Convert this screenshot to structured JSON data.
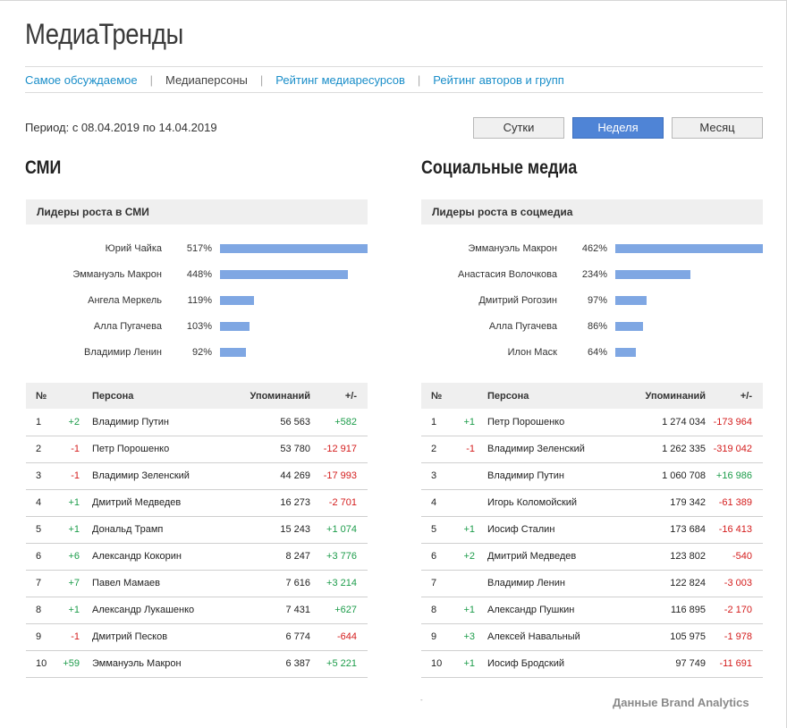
{
  "app": {
    "title": "МедиаТренды"
  },
  "nav": {
    "items": [
      {
        "label": "Самое обсуждаемое"
      },
      {
        "label": "Медиаперсоны"
      },
      {
        "label": "Рейтинг медиаресурсов"
      },
      {
        "label": "Рейтинг авторов и групп"
      }
    ],
    "separator": "|"
  },
  "period": {
    "text": "Период: с 08.04.2019 по 14.04.2019"
  },
  "range_buttons": {
    "day": "Сутки",
    "week": "Неделя",
    "month": "Месяц",
    "active": "week"
  },
  "smi": {
    "title": "СМИ",
    "growth_title": "Лидеры роста в СМИ",
    "growth": [
      {
        "name": "Юрий Чайка",
        "pct": "517%",
        "value": 517
      },
      {
        "name": "Эммануэль Макрон",
        "pct": "448%",
        "value": 448
      },
      {
        "name": "Ангела Меркель",
        "pct": "119%",
        "value": 119
      },
      {
        "name": "Алла Пугачева",
        "pct": "103%",
        "value": 103
      },
      {
        "name": "Владимир Ленин",
        "pct": "92%",
        "value": 92
      }
    ],
    "table": {
      "headers": {
        "num": "№",
        "person": "Персона",
        "mentions": "Упоминаний",
        "diff": "+/-"
      },
      "rows": [
        {
          "num": "1",
          "delta": "+2",
          "name": "Владимир Путин",
          "mentions": "56 563",
          "diff": "+582"
        },
        {
          "num": "2",
          "delta": "-1",
          "name": "Петр Порошенко",
          "mentions": "53 780",
          "diff": "-12 917"
        },
        {
          "num": "3",
          "delta": "-1",
          "name": "Владимир Зеленский",
          "mentions": "44 269",
          "diff": "-17 993"
        },
        {
          "num": "4",
          "delta": "+1",
          "name": "Дмитрий Медведев",
          "mentions": "16 273",
          "diff": "-2 701"
        },
        {
          "num": "5",
          "delta": "+1",
          "name": "Дональд Трамп",
          "mentions": "15 243",
          "diff": "+1 074"
        },
        {
          "num": "6",
          "delta": "+6",
          "name": "Александр Кокорин",
          "mentions": "8 247",
          "diff": "+3 776"
        },
        {
          "num": "7",
          "delta": "+7",
          "name": "Павел Мамаев",
          "mentions": "7 616",
          "diff": "+3 214"
        },
        {
          "num": "8",
          "delta": "+1",
          "name": "Александр Лукашенко",
          "mentions": "7 431",
          "diff": "+627"
        },
        {
          "num": "9",
          "delta": "-1",
          "name": "Дмитрий Песков",
          "mentions": "6 774",
          "diff": "-644"
        },
        {
          "num": "10",
          "delta": "+59",
          "name": "Эммануэль Макрон",
          "mentions": "6 387",
          "diff": "+5 221"
        }
      ]
    }
  },
  "social": {
    "title": "Социальные медиа",
    "growth_title": "Лидеры роста в соцмедиа",
    "growth": [
      {
        "name": "Эммануэль Макрон",
        "pct": "462%",
        "value": 462
      },
      {
        "name": "Анастасия Волочкова",
        "pct": "234%",
        "value": 234
      },
      {
        "name": "Дмитрий Рогозин",
        "pct": "97%",
        "value": 97
      },
      {
        "name": "Алла Пугачева",
        "pct": "86%",
        "value": 86
      },
      {
        "name": "Илон Маск",
        "pct": "64%",
        "value": 64
      }
    ],
    "table": {
      "headers": {
        "num": "№",
        "person": "Персона",
        "mentions": "Упоминаний",
        "diff": "+/-"
      },
      "rows": [
        {
          "num": "1",
          "delta": "+1",
          "name": "Петр Порошенко",
          "mentions": "1 274 034",
          "diff": "-173 964"
        },
        {
          "num": "2",
          "delta": "-1",
          "name": "Владимир Зеленский",
          "mentions": "1 262 335",
          "diff": "-319 042"
        },
        {
          "num": "3",
          "delta": "",
          "name": "Владимир Путин",
          "mentions": "1 060 708",
          "diff": "+16 986"
        },
        {
          "num": "4",
          "delta": "",
          "name": "Игорь Коломойский",
          "mentions": "179 342",
          "diff": "-61 389"
        },
        {
          "num": "5",
          "delta": "+1",
          "name": "Иосиф Сталин",
          "mentions": "173 684",
          "diff": "-16 413"
        },
        {
          "num": "6",
          "delta": "+2",
          "name": "Дмитрий Медведев",
          "mentions": "123 802",
          "diff": "-540"
        },
        {
          "num": "7",
          "delta": "",
          "name": "Владимир Ленин",
          "mentions": "122 824",
          "diff": "-3 003"
        },
        {
          "num": "8",
          "delta": "+1",
          "name": "Александр Пушкин",
          "mentions": "116 895",
          "diff": "-2 170"
        },
        {
          "num": "9",
          "delta": "+3",
          "name": "Алексей Навальный",
          "mentions": "105 975",
          "diff": "-1 978"
        },
        {
          "num": "10",
          "delta": "+1",
          "name": "Иосиф Бродский",
          "mentions": "97 749",
          "diff": "-11 691"
        }
      ]
    }
  },
  "footer": {
    "source": "Данные Brand Analytics"
  },
  "colors": {
    "link": "#1a8ec9",
    "bar": "#7fa7e3",
    "active_button": "#4f84d6",
    "positive": "#1c9c4a",
    "negative": "#d41c1c"
  }
}
